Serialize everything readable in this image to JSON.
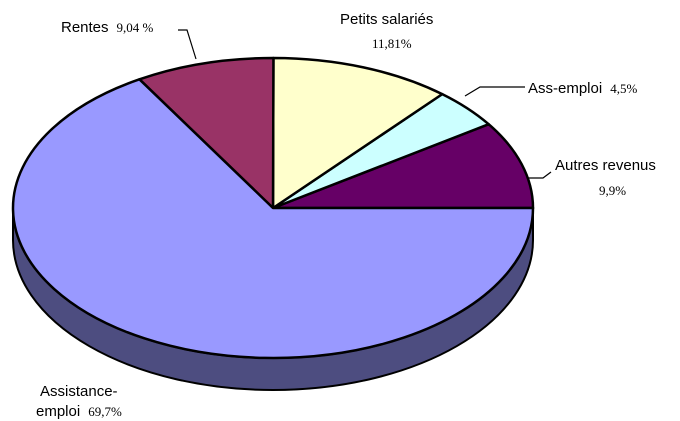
{
  "chart_data": {
    "type": "pie",
    "three_d": true,
    "start_angle_deg": 0,
    "direction": "counterclockwise",
    "legend": "none",
    "slices": [
      {
        "name": "Autres revenus",
        "value": 9.9,
        "value_label": "9,9%",
        "color": "#660066"
      },
      {
        "name": "Ass-emploi",
        "value": 4.5,
        "value_label": "4,5%",
        "color": "#ccffff"
      },
      {
        "name": "Petits salariés",
        "value": 11.81,
        "value_label": "11,81%",
        "color": "#ffffcc"
      },
      {
        "name": "Rentes",
        "value": 9.04,
        "value_label": "9,04 %",
        "color": "#993366"
      },
      {
        "name": "Assistance-emploi",
        "value": 69.7,
        "value_label": "69,7%",
        "color": "#9999ff"
      }
    ]
  },
  "labels": {
    "autres_name": "Autres revenus",
    "autres_val": "9,9%",
    "assemploi_name": "Ass-emploi",
    "assemploi_val": "4,5%",
    "petits_name": "Petits salariés",
    "petits_val": "11,81%",
    "rentes_name": "Rentes",
    "rentes_val": "9,04 %",
    "assistance_name": "Assistance-",
    "assistance_name2": "emploi",
    "assistance_val": "69,7%"
  }
}
